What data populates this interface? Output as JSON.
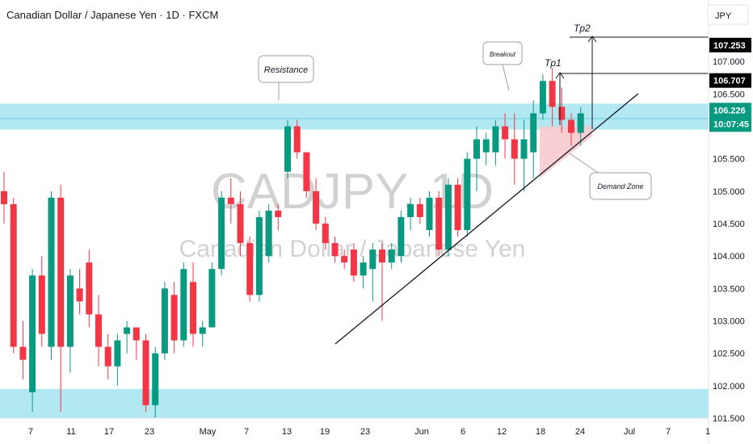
{
  "header": {
    "title": "Canadian Dollar / Japanese Yen · 1D · FXCM",
    "currency": "JPY"
  },
  "watermark": {
    "symbol": "CADJPY, 1D",
    "name": "Canadian Dollar / Japanese Yen"
  },
  "colors": {
    "up": "#089981",
    "down": "#f23645",
    "zone": "#a8e6ef",
    "demand": "#f8c7cc"
  },
  "chart_data": {
    "type": "candlestick",
    "title": "Canadian Dollar / Japanese Yen · 1D · FXCM",
    "ylim": [
      101.5,
      107.45
    ],
    "yticks": [
      "107.000",
      "106.500",
      "106.000",
      "105.500",
      "105.000",
      "104.500",
      "104.000",
      "103.500",
      "103.000",
      "102.500",
      "102.000",
      "101.500"
    ],
    "xticks": [
      "7",
      "11",
      "17",
      "23",
      "May",
      "7",
      "13",
      "19",
      "23",
      "Jun",
      "6",
      "12",
      "18",
      "24",
      "Jul",
      "7",
      "1"
    ],
    "candles": [
      {
        "o": 105.0,
        "h": 105.3,
        "l": 104.5,
        "c": 104.8
      },
      {
        "o": 104.8,
        "h": 104.9,
        "l": 102.5,
        "c": 102.6
      },
      {
        "o": 102.6,
        "h": 103.0,
        "l": 102.1,
        "c": 102.4
      },
      {
        "o": 101.9,
        "h": 103.8,
        "l": 101.6,
        "c": 103.7
      },
      {
        "o": 103.7,
        "h": 104.0,
        "l": 102.6,
        "c": 102.8
      },
      {
        "o": 102.6,
        "h": 105.0,
        "l": 102.4,
        "c": 104.9
      },
      {
        "o": 104.9,
        "h": 105.1,
        "l": 101.6,
        "c": 102.6
      },
      {
        "o": 102.6,
        "h": 103.8,
        "l": 102.2,
        "c": 103.7
      },
      {
        "o": 103.5,
        "h": 103.8,
        "l": 103.1,
        "c": 103.3
      },
      {
        "o": 103.9,
        "h": 104.1,
        "l": 102.9,
        "c": 103.1
      },
      {
        "o": 103.1,
        "h": 103.4,
        "l": 102.3,
        "c": 102.6
      },
      {
        "o": 102.6,
        "h": 102.8,
        "l": 102.1,
        "c": 102.3
      },
      {
        "o": 102.3,
        "h": 102.8,
        "l": 102.0,
        "c": 102.7
      },
      {
        "o": 102.8,
        "h": 103.0,
        "l": 102.5,
        "c": 102.9
      },
      {
        "o": 102.9,
        "h": 102.9,
        "l": 102.4,
        "c": 102.7
      },
      {
        "o": 102.7,
        "h": 102.8,
        "l": 101.6,
        "c": 101.7
      },
      {
        "o": 101.7,
        "h": 102.6,
        "l": 101.5,
        "c": 102.5
      },
      {
        "o": 102.5,
        "h": 103.6,
        "l": 102.4,
        "c": 103.5
      },
      {
        "o": 103.4,
        "h": 103.6,
        "l": 102.5,
        "c": 102.7
      },
      {
        "o": 102.7,
        "h": 103.9,
        "l": 102.6,
        "c": 103.8
      },
      {
        "o": 103.6,
        "h": 103.9,
        "l": 102.6,
        "c": 102.8
      },
      {
        "o": 102.8,
        "h": 103.0,
        "l": 102.6,
        "c": 102.9
      },
      {
        "o": 102.9,
        "h": 103.9,
        "l": 102.9,
        "c": 103.8
      },
      {
        "o": 103.8,
        "h": 105.0,
        "l": 103.7,
        "c": 104.9
      },
      {
        "o": 104.9,
        "h": 105.2,
        "l": 104.5,
        "c": 104.8
      },
      {
        "o": 104.8,
        "h": 105.0,
        "l": 104.0,
        "c": 104.2
      },
      {
        "o": 104.2,
        "h": 104.3,
        "l": 103.3,
        "c": 103.4
      },
      {
        "o": 103.4,
        "h": 104.7,
        "l": 103.3,
        "c": 104.6
      },
      {
        "o": 104.0,
        "h": 104.8,
        "l": 103.9,
        "c": 104.7
      },
      {
        "o": 104.7,
        "h": 104.8,
        "l": 104.4,
        "c": 104.6
      },
      {
        "o": 105.3,
        "h": 106.1,
        "l": 105.2,
        "c": 106.0
      },
      {
        "o": 106.0,
        "h": 106.1,
        "l": 105.5,
        "c": 105.6
      },
      {
        "o": 105.6,
        "h": 105.6,
        "l": 104.9,
        "c": 105.0
      },
      {
        "o": 105.0,
        "h": 105.2,
        "l": 104.4,
        "c": 104.5
      },
      {
        "o": 104.5,
        "h": 104.6,
        "l": 104.1,
        "c": 104.2
      },
      {
        "o": 104.2,
        "h": 104.3,
        "l": 103.9,
        "c": 104.0
      },
      {
        "o": 104.0,
        "h": 104.1,
        "l": 103.8,
        "c": 103.9
      },
      {
        "o": 104.1,
        "h": 104.2,
        "l": 103.6,
        "c": 103.7
      },
      {
        "o": 103.7,
        "h": 104.0,
        "l": 103.5,
        "c": 103.9
      },
      {
        "o": 103.8,
        "h": 104.2,
        "l": 103.3,
        "c": 104.1
      },
      {
        "o": 104.1,
        "h": 104.2,
        "l": 103.0,
        "c": 103.9
      },
      {
        "o": 103.9,
        "h": 104.2,
        "l": 103.8,
        "c": 104.1
      },
      {
        "o": 104.0,
        "h": 104.7,
        "l": 103.9,
        "c": 104.6
      },
      {
        "o": 104.6,
        "h": 104.9,
        "l": 104.4,
        "c": 104.8
      },
      {
        "o": 104.8,
        "h": 104.9,
        "l": 104.5,
        "c": 104.6
      },
      {
        "o": 104.4,
        "h": 105.0,
        "l": 104.3,
        "c": 104.9
      },
      {
        "o": 104.9,
        "h": 105.0,
        "l": 104.0,
        "c": 104.1
      },
      {
        "o": 104.1,
        "h": 105.2,
        "l": 104.0,
        "c": 105.1
      },
      {
        "o": 105.1,
        "h": 105.2,
        "l": 104.3,
        "c": 104.4
      },
      {
        "o": 104.4,
        "h": 105.6,
        "l": 104.3,
        "c": 105.5
      },
      {
        "o": 105.5,
        "h": 106.0,
        "l": 105.0,
        "c": 105.8
      },
      {
        "o": 105.6,
        "h": 105.9,
        "l": 105.4,
        "c": 105.8
      },
      {
        "o": 105.6,
        "h": 106.1,
        "l": 105.4,
        "c": 106.0
      },
      {
        "o": 106.0,
        "h": 106.2,
        "l": 105.5,
        "c": 105.8
      },
      {
        "o": 105.8,
        "h": 106.2,
        "l": 105.1,
        "c": 105.5
      },
      {
        "o": 105.5,
        "h": 106.1,
        "l": 105.0,
        "c": 105.8
      },
      {
        "o": 105.6,
        "h": 106.4,
        "l": 105.2,
        "c": 106.2
      },
      {
        "o": 106.2,
        "h": 106.8,
        "l": 106.1,
        "c": 106.7
      },
      {
        "o": 106.7,
        "h": 106.9,
        "l": 106.0,
        "c": 106.3
      },
      {
        "o": 106.3,
        "h": 106.6,
        "l": 105.9,
        "c": 106.1
      },
      {
        "o": 106.1,
        "h": 106.2,
        "l": 105.7,
        "c": 105.9
      },
      {
        "o": 105.9,
        "h": 106.3,
        "l": 105.7,
        "c": 106.2
      }
    ],
    "zones": [
      {
        "name": "resistance-zone",
        "from": 105.95,
        "to": 106.35
      },
      {
        "name": "support-zone",
        "from": 101.5,
        "to": 101.95
      }
    ],
    "price_tags": [
      {
        "name": "tp2-price",
        "value": 107.253,
        "label": "107.253",
        "color": "#000000"
      },
      {
        "name": "tp1-price",
        "value": 106.707,
        "label": "106.707",
        "color": "#000000"
      },
      {
        "name": "current-price",
        "value": 106.226,
        "label": "106.226",
        "sublabel": "10:07:45",
        "color": "#089981"
      }
    ],
    "annotations": {
      "resistance": "Resistance",
      "breakout": "Breakout",
      "tp1": "Tp1",
      "tp2": "Tp2",
      "demand": "Demand Zone"
    }
  }
}
